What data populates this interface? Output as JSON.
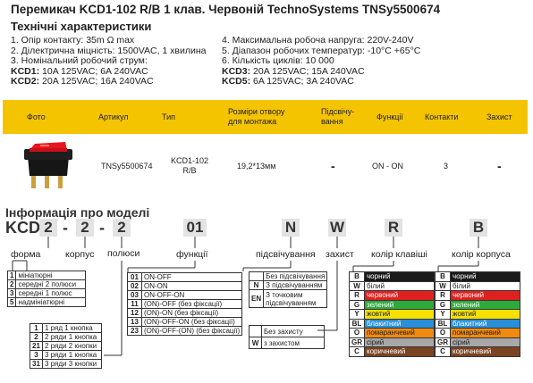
{
  "header": {
    "title": "Перемикач KCD1-102 R/B 1 клав. Червоній TechnoSystems TNSy5500674",
    "subtitle": "Технічні характеристики"
  },
  "specs": {
    "left": [
      "1. Опір контакту: 35m Ω  max",
      "2. Ділектрична міцність:  1500VAC, 1 хвилина",
      "3. Номінальний робочий струм:"
    ],
    "kcd1_label": "KCD1:",
    "kcd1_value": " 10A 125VAC; 6A 240VAC",
    "kcd2_label": "KCD2:",
    "kcd2_value": " 20A 125VAC; 16A 240VAC",
    "right": [
      "4. Максимальна робоча напруга: 220V-240V",
      "5. Діапазон робочих температур: -10°C  +65°C",
      "6. Кількість циклів: 10 000"
    ],
    "kcd3_label": "KCD3:",
    "kcd3_value": " 20A 125VAC; 15A 240VAC",
    "kcd5_label": "KCD5:",
    "kcd5_value": " 6A 125VAC; 3A 240VAC"
  },
  "table": {
    "headers": [
      "Фото",
      "Артикул",
      "Тип",
      "Розміри отвору для монтажа",
      "Підсвічу-вання",
      "Функції",
      "Контакти",
      "Захист"
    ],
    "row": {
      "article": "TNSy5500674",
      "type": "KCD1-102 R/B",
      "size": "19,2*13мм",
      "backlight": "-",
      "function": "ON - ON",
      "contacts": "3",
      "protection": "-"
    }
  },
  "model": {
    "title": "Інформація про моделі",
    "prefix": "KCD",
    "boxes": [
      "2",
      "2",
      "01",
      "N",
      "W",
      "R",
      "B"
    ],
    "dashes": [
      "-",
      "-",
      "-"
    ],
    "labels": {
      "shape": "форма",
      "body": "корпус",
      "poles": "полюси",
      "functions": "функції",
      "backlight": "підсвічування",
      "protection": "захист",
      "key_color": "колір клавіші",
      "body_color": "колір корпуса"
    },
    "shape_rows": [
      {
        "k": "1",
        "v": "мініатюрні"
      },
      {
        "k": "2",
        "v": "середні 2 полюси"
      },
      {
        "k": "3",
        "v": "середні 1 полюс"
      },
      {
        "k": "5",
        "v": "надмініатюрні"
      }
    ],
    "poles_rows": [
      {
        "k": "1",
        "v": "1 ряд 1 кнопка"
      },
      {
        "k": "2",
        "v": "2 ряди 1 кнопка"
      },
      {
        "k": "21",
        "v": "2 ряди 2 кнопки"
      },
      {
        "k": "3",
        "v": "3 ряди 1 кнопка"
      },
      {
        "k": "31",
        "v": "3 ряди 3 кнопки"
      }
    ],
    "func_rows": [
      {
        "k": "01",
        "v": "ON-OFF"
      },
      {
        "k": "02",
        "v": "ON-ON"
      },
      {
        "k": "03",
        "v": "ON-OFF-ON"
      },
      {
        "k": "11",
        "v": "(ON)-OFF (без фіксації)"
      },
      {
        "k": "12",
        "v": "(ON)-ON (без фіксації)"
      },
      {
        "k": "13",
        "v": "(ON)-OFF-ON (без фіксації)"
      },
      {
        "k": "23",
        "v": "(ON)-OFF-(ON) (без фіксації)"
      }
    ],
    "light_rows": [
      {
        "k": "",
        "v": "Без підсвічування"
      },
      {
        "k": "N",
        "v": "З підсвічуванням"
      },
      {
        "k": "EN",
        "v": "З точковим підсвічуванням"
      }
    ],
    "prot_rows": [
      {
        "k": "",
        "v": "Без захисту"
      },
      {
        "k": "W",
        "v": "з захистом"
      }
    ],
    "key_colors": [
      {
        "k": "B",
        "v": "чорний",
        "bg": "#1a1a1a",
        "fg": "#ffffff"
      },
      {
        "k": "W",
        "v": "білий",
        "bg": "#ffffff",
        "fg": "#222222"
      },
      {
        "k": "R",
        "v": "червоний",
        "bg": "#e02020",
        "fg": "#ffffff"
      },
      {
        "k": "G",
        "v": "зелений",
        "bg": "#2eaa3a",
        "fg": "#ffffff"
      },
      {
        "k": "Y",
        "v": "жовтий",
        "bg": "#f5e000",
        "fg": "#222222"
      },
      {
        "k": "BL",
        "v": "блакитний",
        "bg": "#2a8fd8",
        "fg": "#ffffff"
      },
      {
        "k": "O",
        "v": "помаранчевий",
        "bg": "#f08a10",
        "fg": "#222222"
      },
      {
        "k": "GR",
        "v": "сірий",
        "bg": "#a8a8a8",
        "fg": "#222222"
      },
      {
        "k": "C",
        "v": "коричневий",
        "bg": "#7a4422",
        "fg": "#ffffff"
      }
    ],
    "body_colors": [
      {
        "k": "B",
        "v": "чорний",
        "bg": "#1a1a1a",
        "fg": "#ffffff"
      },
      {
        "k": "W",
        "v": "білий",
        "bg": "#ffffff",
        "fg": "#222222"
      },
      {
        "k": "R",
        "v": "червоний",
        "bg": "#e02020",
        "fg": "#ffffff"
      },
      {
        "k": "G",
        "v": "зелений",
        "bg": "#2eaa3a",
        "fg": "#ffffff"
      },
      {
        "k": "Y",
        "v": "жовтий",
        "bg": "#f5e000",
        "fg": "#222222"
      },
      {
        "k": "BL",
        "v": "блакитний",
        "bg": "#2a8fd8",
        "fg": "#ffffff"
      },
      {
        "k": "O",
        "v": "помаранчевий",
        "bg": "#f08a10",
        "fg": "#222222"
      },
      {
        "k": "GR",
        "v": "сірий",
        "bg": "#a8a8a8",
        "fg": "#222222"
      },
      {
        "k": "C",
        "v": "коричневий",
        "bg": "#7a4422",
        "fg": "#ffffff"
      }
    ]
  },
  "colors": {
    "header_bar": "#f5c400",
    "switch_rocker": "#e8161e",
    "switch_body": "#161616",
    "pins": "#c8a040"
  }
}
